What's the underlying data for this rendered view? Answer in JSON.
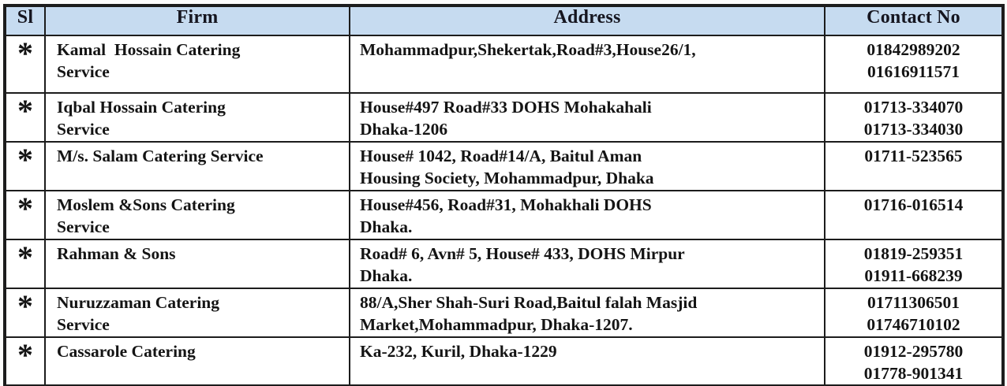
{
  "document_type": "scanned-table",
  "colors": {
    "header_bg": "#c6dbf0",
    "header_text": "#15151f",
    "body_text": "#141414",
    "border": "#1c1c1c"
  },
  "table": {
    "columns": [
      {
        "key": "sl",
        "label": "Sl"
      },
      {
        "key": "firm",
        "label": "Firm"
      },
      {
        "key": "address",
        "label": "Address"
      },
      {
        "key": "contact",
        "label": "Contact No"
      }
    ],
    "rows": [
      {
        "marker": "*",
        "firm_lines": [
          "Kamal  Hossain Catering",
          "Service"
        ],
        "address_lines": [
          "Mohammadpur,Shekertak,Road#3,House26/1,"
        ],
        "contact_numbers": [
          "01842989202",
          "01616911571"
        ]
      },
      {
        "marker": "*",
        "firm_lines": [
          "Iqbal Hossain Catering",
          "Service"
        ],
        "address_lines": [
          "House#497 Road#33 DOHS Mohakahali",
          "Dhaka-1206"
        ],
        "contact_numbers": [
          "01713-334070",
          "01713-334030"
        ]
      },
      {
        "marker": "*",
        "firm_lines": [
          "M/s. Salam Catering Service"
        ],
        "address_lines": [
          "House# 1042, Road#14/A, Baitul Aman",
          "Housing Society, Mohammadpur, Dhaka"
        ],
        "contact_numbers": [
          "01711-523565"
        ]
      },
      {
        "marker": "*",
        "firm_lines": [
          "Moslem &Sons Catering",
          "Service"
        ],
        "address_lines": [
          "House#456, Road#31, Mohakhali DOHS",
          "Dhaka."
        ],
        "contact_numbers": [
          "01716-016514"
        ]
      },
      {
        "marker": "*",
        "firm_lines": [
          "Rahman & Sons"
        ],
        "address_lines": [
          "Road# 6, Avn# 5, House# 433, DOHS Mirpur",
          "Dhaka."
        ],
        "contact_numbers": [
          "01819-259351",
          "01911-668239"
        ]
      },
      {
        "marker": "*",
        "firm_lines": [
          "Nuruzzaman Catering",
          "Service"
        ],
        "address_lines": [
          "88/A,Sher Shah-Suri Road,Baitul falah Masjid",
          "Market,Mohammadpur, Dhaka-1207."
        ],
        "contact_numbers": [
          "01711306501",
          "01746710102"
        ]
      },
      {
        "marker": "*",
        "firm_lines": [
          "Cassarole Catering"
        ],
        "address_lines": [
          "Ka-232, Kuril, Dhaka-1229"
        ],
        "contact_numbers": [
          "01912-295780",
          "01778-901341"
        ]
      }
    ]
  }
}
